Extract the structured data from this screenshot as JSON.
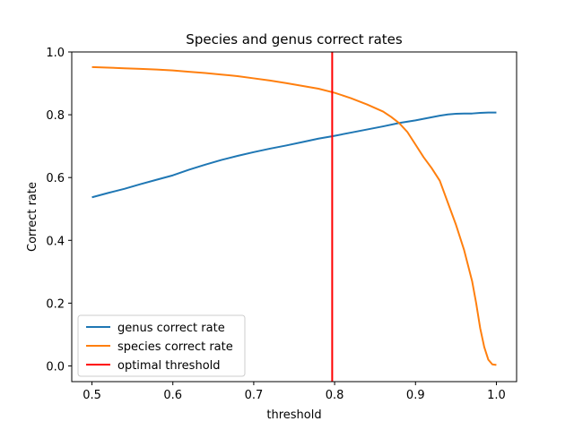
{
  "chart_data": {
    "type": "line",
    "title": "Species and genus correct rates",
    "xlabel": "threshold",
    "ylabel": "Correct rate",
    "xlim": [
      0.475,
      1.025
    ],
    "ylim": [
      -0.05,
      1.0
    ],
    "xticks": [
      0.5,
      0.6,
      0.7,
      0.8,
      0.9,
      1.0
    ],
    "xtick_labels": [
      "0.5",
      "0.6",
      "0.7",
      "0.8",
      "0.9",
      "1.0"
    ],
    "yticks": [
      0.0,
      0.2,
      0.4,
      0.6,
      0.8,
      1.0
    ],
    "ytick_labels": [
      "0.0",
      "0.2",
      "0.4",
      "0.6",
      "0.8",
      "1.0"
    ],
    "grid": false,
    "legend_position": "lower-left",
    "series": [
      {
        "name": "genus correct rate",
        "color": "#1f77b4",
        "x": [
          0.5,
          0.52,
          0.54,
          0.56,
          0.58,
          0.6,
          0.62,
          0.64,
          0.66,
          0.68,
          0.7,
          0.72,
          0.74,
          0.76,
          0.78,
          0.8,
          0.82,
          0.84,
          0.86,
          0.88,
          0.9,
          0.92,
          0.93,
          0.94,
          0.95,
          0.96,
          0.97,
          0.98,
          0.99,
          1.0
        ],
        "y": [
          0.537,
          0.551,
          0.564,
          0.579,
          0.593,
          0.607,
          0.625,
          0.641,
          0.656,
          0.669,
          0.681,
          0.692,
          0.702,
          0.713,
          0.724,
          0.733,
          0.743,
          0.753,
          0.763,
          0.774,
          0.782,
          0.792,
          0.797,
          0.801,
          0.803,
          0.804,
          0.804,
          0.806,
          0.807,
          0.807
        ]
      },
      {
        "name": "species correct rate",
        "color": "#ff7f0e",
        "x": [
          0.5,
          0.52,
          0.54,
          0.56,
          0.58,
          0.6,
          0.62,
          0.64,
          0.66,
          0.68,
          0.7,
          0.72,
          0.74,
          0.76,
          0.78,
          0.8,
          0.82,
          0.84,
          0.86,
          0.87,
          0.88,
          0.89,
          0.9,
          0.91,
          0.92,
          0.93,
          0.94,
          0.95,
          0.96,
          0.97,
          0.975,
          0.98,
          0.985,
          0.99,
          0.995,
          1.0
        ],
        "y": [
          0.952,
          0.95,
          0.948,
          0.946,
          0.944,
          0.941,
          0.937,
          0.933,
          0.928,
          0.923,
          0.916,
          0.909,
          0.901,
          0.892,
          0.883,
          0.87,
          0.853,
          0.833,
          0.81,
          0.793,
          0.773,
          0.745,
          0.705,
          0.665,
          0.63,
          0.59,
          0.52,
          0.45,
          0.37,
          0.27,
          0.2,
          0.12,
          0.06,
          0.02,
          0.005,
          0.003
        ]
      },
      {
        "name": "optimal threshold",
        "color": "#ff0000",
        "type": "vline",
        "x": 0.797
      }
    ]
  }
}
